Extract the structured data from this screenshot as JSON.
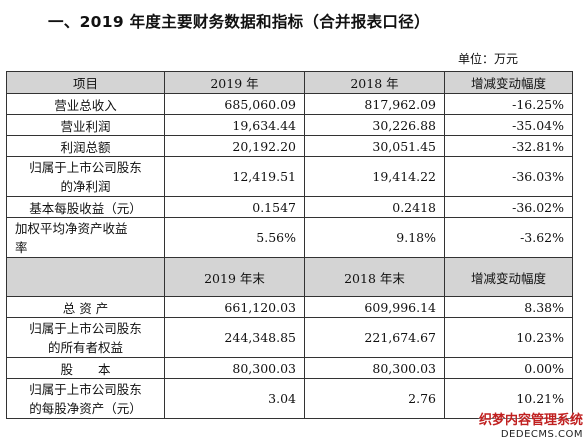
{
  "title": "一、2019 年度主要财务数据和指标（合并报表口径）",
  "unit": "单位：万元",
  "header1": [
    "项目",
    "2019 年",
    "2018 年",
    "增减变动幅度"
  ],
  "rows1": [
    {
      "label": "营业总收入",
      "v2019": "685,060.09",
      "v2018": "817,962.09",
      "chg": "-16.25%"
    },
    {
      "label": "营业利润",
      "v2019": "19,634.44",
      "v2018": "30,226.88",
      "chg": "-35.04%"
    },
    {
      "label": "利润总额",
      "v2019": "20,192.20",
      "v2018": "30,051.45",
      "chg": "-32.81%"
    },
    {
      "label1": "归属于上市公司股东",
      "label2": "的净利润",
      "v2019": "12,419.51",
      "v2018": "19,414.22",
      "chg": "-36.03%"
    },
    {
      "label": "基本每股收益（元）",
      "v2019": "0.1547",
      "v2018": "0.2418",
      "chg": "-36.02%"
    },
    {
      "label1": "加权平均净资产收益",
      "label2": "率",
      "v2019": "5.56%",
      "v2018": "9.18%",
      "chg": "-3.62%"
    }
  ],
  "header2": [
    "",
    "2019 年末",
    "2018 年末",
    "增减变动幅度"
  ],
  "rows2": [
    {
      "label": "总 资 产",
      "v2019": "661,120.03",
      "v2018": "609,996.14",
      "chg": "8.38%"
    },
    {
      "label1": "归属于上市公司股东",
      "label2": "的所有者权益",
      "v2019": "244,348.85",
      "v2018": "221,674.67",
      "chg": "10.23%"
    },
    {
      "label": "股　　本",
      "v2019": "80,300.03",
      "v2018": "80,300.03",
      "chg": "0.00%"
    },
    {
      "label1": "归属于上市公司股东",
      "label2": "的每股净资产（元）",
      "v2019": "3.04",
      "v2018": "2.76",
      "chg": "10.21%"
    }
  ],
  "watermark": {
    "line1": "织梦内容管理系统",
    "line2": "DEDECMS.COM"
  },
  "colors": {
    "header_bg": "#d4d4d4",
    "border": "#333333",
    "watermark_red": "#c02020"
  }
}
